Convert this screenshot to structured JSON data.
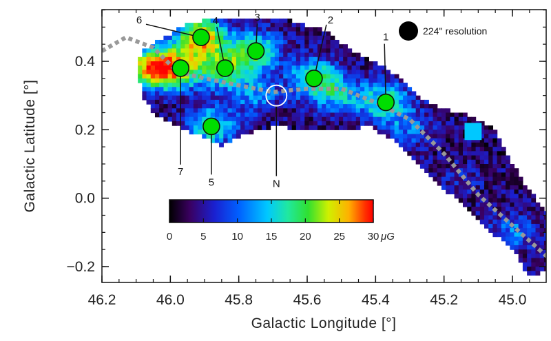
{
  "chart_data": {
    "type": "heatmap",
    "title": "",
    "xlabel": "Galactic Longitude [°]",
    "ylabel": "Galactic Latitude [°]",
    "xlim": [
      46.2,
      44.9
    ],
    "ylim": [
      -0.25,
      0.55
    ],
    "x_ticks": [
      "46.2",
      "46.0",
      "45.8",
      "45.6",
      "45.4",
      "45.2",
      "45.0"
    ],
    "x_tick_values": [
      46.2,
      46.0,
      45.8,
      45.6,
      45.4,
      45.2,
      45.0
    ],
    "y_ticks": [
      "0.4",
      "0.2",
      "0.0",
      "−0.2"
    ],
    "y_tick_values": [
      0.4,
      0.2,
      0.0,
      -0.2
    ],
    "colorbar": {
      "ticks": [
        "0",
        "5",
        "10",
        "15",
        "20",
        "25",
        "30"
      ],
      "tick_values": [
        0,
        5,
        10,
        15,
        20,
        25,
        30
      ],
      "unit": "μG",
      "range": [
        0,
        30
      ],
      "colormap": [
        "#000000",
        "#3a0060",
        "#1a20d0",
        "#0060ff",
        "#00c8ff",
        "#20e8a0",
        "#30e030",
        "#d0f000",
        "#ffb000",
        "#ff3000",
        "#ff0000"
      ]
    },
    "resolution_label": "224'' resolution",
    "markers": [
      {
        "label": "1",
        "lon": 45.37,
        "lat": 0.28,
        "color": "#00dd00"
      },
      {
        "label": "2",
        "lon": 45.58,
        "lat": 0.35,
        "color": "#00dd00"
      },
      {
        "label": "3",
        "lon": 45.75,
        "lat": 0.43,
        "color": "#00dd00"
      },
      {
        "label": "4",
        "lon": 45.84,
        "lat": 0.38,
        "color": "#00dd00"
      },
      {
        "label": "5",
        "lon": 45.88,
        "lat": 0.21,
        "color": "#00dd00"
      },
      {
        "label": "6",
        "lon": 45.91,
        "lat": 0.47,
        "color": "#00dd00"
      },
      {
        "label": "7",
        "lon": 45.97,
        "lat": 0.38,
        "color": "#00dd00"
      },
      {
        "label": "N",
        "lon": 45.69,
        "lat": 0.3,
        "color": "none"
      }
    ],
    "ridge_line": {
      "color": "#999999",
      "points": [
        [
          46.2,
          0.43
        ],
        [
          46.13,
          0.47
        ],
        [
          46.05,
          0.44
        ],
        [
          45.98,
          0.37
        ],
        [
          45.9,
          0.35
        ],
        [
          45.8,
          0.33
        ],
        [
          45.7,
          0.31
        ],
        [
          45.6,
          0.32
        ],
        [
          45.5,
          0.32
        ],
        [
          45.4,
          0.28
        ],
        [
          45.3,
          0.23
        ],
        [
          45.2,
          0.13
        ],
        [
          45.1,
          0.01
        ],
        [
          45.0,
          -0.08
        ],
        [
          44.9,
          -0.17
        ]
      ]
    },
    "regions": [
      {
        "lon": 46.05,
        "lat": 0.38,
        "value": 28
      },
      {
        "lon": 45.91,
        "lat": 0.47,
        "value": 27
      },
      {
        "lon": 45.97,
        "lat": 0.38,
        "value": 20
      },
      {
        "lon": 45.84,
        "lat": 0.38,
        "value": 19
      },
      {
        "lon": 45.75,
        "lat": 0.43,
        "value": 18
      },
      {
        "lon": 45.58,
        "lat": 0.35,
        "value": 18
      },
      {
        "lon": 45.37,
        "lat": 0.28,
        "value": 17
      },
      {
        "lon": 45.88,
        "lat": 0.21,
        "value": 16
      },
      {
        "lon": 45.5,
        "lat": 0.3,
        "value": 13
      },
      {
        "lon": 45.75,
        "lat": 0.3,
        "value": 11
      },
      {
        "lon": 45.3,
        "lat": 0.2,
        "value": 9
      },
      {
        "lon": 45.15,
        "lat": 0.05,
        "value": 6
      },
      {
        "lon": 45.0,
        "lat": -0.1,
        "value": 10
      }
    ]
  }
}
